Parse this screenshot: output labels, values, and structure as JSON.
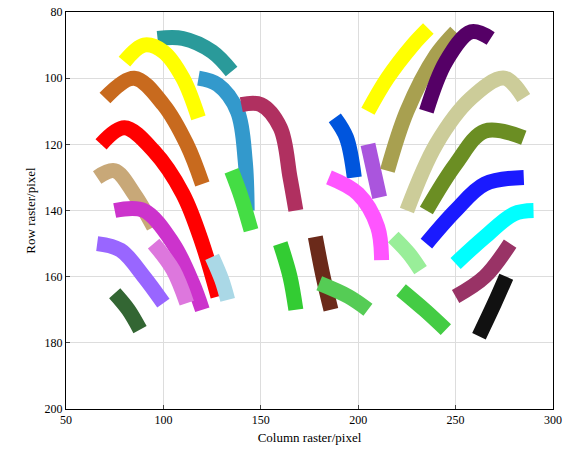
{
  "chart_data": {
    "type": "line",
    "x_label": "Column raster/pixel",
    "y_label": "Row raster/pixel",
    "xlim": [
      50,
      300
    ],
    "xticks": [
      50,
      100,
      150,
      200,
      250,
      300
    ],
    "ylim": [
      80,
      200
    ],
    "yticks": [
      80,
      100,
      120,
      140,
      160,
      180,
      200
    ],
    "grid": true,
    "series": [
      {
        "color": "#2a9a9a",
        "x": [
          97,
          110,
          125,
          135
        ],
        "values": [
          88,
          88,
          92,
          98
        ]
      },
      {
        "color": "#ffff00",
        "x": [
          80,
          90,
          100,
          110,
          118
        ],
        "values": [
          95,
          90,
          92,
          100,
          112
        ]
      },
      {
        "color": "#3399cc",
        "x": [
          118,
          128,
          138,
          142,
          143
        ],
        "values": [
          100,
          102,
          110,
          125,
          140
        ]
      },
      {
        "color": "#c86a1e",
        "x": [
          70,
          85,
          100,
          112,
          120
        ],
        "values": [
          106,
          100,
          108,
          120,
          132
        ]
      },
      {
        "color": "#b03060",
        "x": [
          140,
          150,
          160,
          165,
          168
        ],
        "values": [
          108,
          108,
          115,
          130,
          140
        ]
      },
      {
        "color": "#ff0000",
        "x": [
          68,
          80,
          95,
          110,
          120,
          128
        ],
        "values": [
          120,
          115,
          122,
          135,
          150,
          166
        ]
      },
      {
        "color": "#c8a878",
        "x": [
          66,
          75,
          85,
          95
        ],
        "values": [
          130,
          128,
          135,
          145
        ]
      },
      {
        "color": "#cc33cc",
        "x": [
          75,
          90,
          105,
          115,
          120
        ],
        "values": [
          140,
          140,
          150,
          162,
          170
        ]
      },
      {
        "color": "#dd77dd",
        "x": [
          95,
          105,
          112
        ],
        "values": [
          150,
          158,
          168
        ]
      },
      {
        "color": "#9966ff",
        "x": [
          66,
          78,
          90,
          100
        ],
        "values": [
          150,
          152,
          160,
          168
        ]
      },
      {
        "color": "#44dd44",
        "x": [
          135,
          140,
          145
        ],
        "values": [
          128,
          136,
          146
        ]
      },
      {
        "color": "#aad8e6",
        "x": [
          125,
          130,
          133
        ],
        "values": [
          154,
          161,
          167
        ]
      },
      {
        "color": "#336633",
        "x": [
          75,
          82,
          88
        ],
        "values": [
          165,
          170,
          176
        ]
      },
      {
        "color": "#33cc33",
        "x": [
          160,
          165,
          168
        ],
        "values": [
          150,
          160,
          170
        ]
      },
      {
        "color": "#6b2a1a",
        "x": [
          178,
          182,
          186
        ],
        "values": [
          148,
          160,
          170
        ]
      },
      {
        "color": "#55cc55",
        "x": [
          180,
          195,
          205
        ],
        "values": [
          162,
          166,
          170
        ]
      },
      {
        "color": "#0055dd",
        "x": [
          188,
          194,
          198
        ],
        "values": [
          112,
          118,
          130
        ]
      },
      {
        "color": "#ff55ff",
        "x": [
          185,
          200,
          210,
          212
        ],
        "values": [
          130,
          135,
          145,
          155
        ]
      },
      {
        "color": "#aa55dd",
        "x": [
          205,
          208,
          211
        ],
        "values": [
          120,
          128,
          136
        ]
      },
      {
        "color": "#ffff00",
        "x": [
          205,
          215,
          228,
          236
        ],
        "values": [
          110,
          100,
          90,
          85
        ]
      },
      {
        "color": "#a8a050",
        "x": [
          215,
          225,
          240,
          250
        ],
        "values": [
          128,
          110,
          93,
          86
        ]
      },
      {
        "color": "#550066",
        "x": [
          235,
          245,
          258,
          268
        ],
        "values": [
          110,
          95,
          86,
          88
        ]
      },
      {
        "color": "#cccc99",
        "x": [
          225,
          240,
          258,
          275,
          285
        ],
        "values": [
          140,
          120,
          106,
          100,
          106
        ]
      },
      {
        "color": "#6b8e23",
        "x": [
          235,
          250,
          265,
          285
        ],
        "values": [
          140,
          126,
          116,
          118
        ]
      },
      {
        "color": "#1a1aff",
        "x": [
          235,
          250,
          265,
          285
        ],
        "values": [
          150,
          140,
          132,
          130
        ]
      },
      {
        "color": "#00ffff",
        "x": [
          250,
          265,
          280,
          290
        ],
        "values": [
          156,
          148,
          141,
          140
        ]
      },
      {
        "color": "#993366",
        "x": [
          250,
          265,
          278
        ],
        "values": [
          166,
          160,
          150
        ]
      },
      {
        "color": "#111111",
        "x": [
          262,
          270,
          276
        ],
        "values": [
          178,
          168,
          160
        ]
      },
      {
        "color": "#44cc44",
        "x": [
          222,
          234,
          245
        ],
        "values": [
          164,
          170,
          176
        ]
      },
      {
        "color": "#99ee99",
        "x": [
          218,
          226,
          232
        ],
        "values": [
          148,
          153,
          158
        ]
      }
    ]
  }
}
